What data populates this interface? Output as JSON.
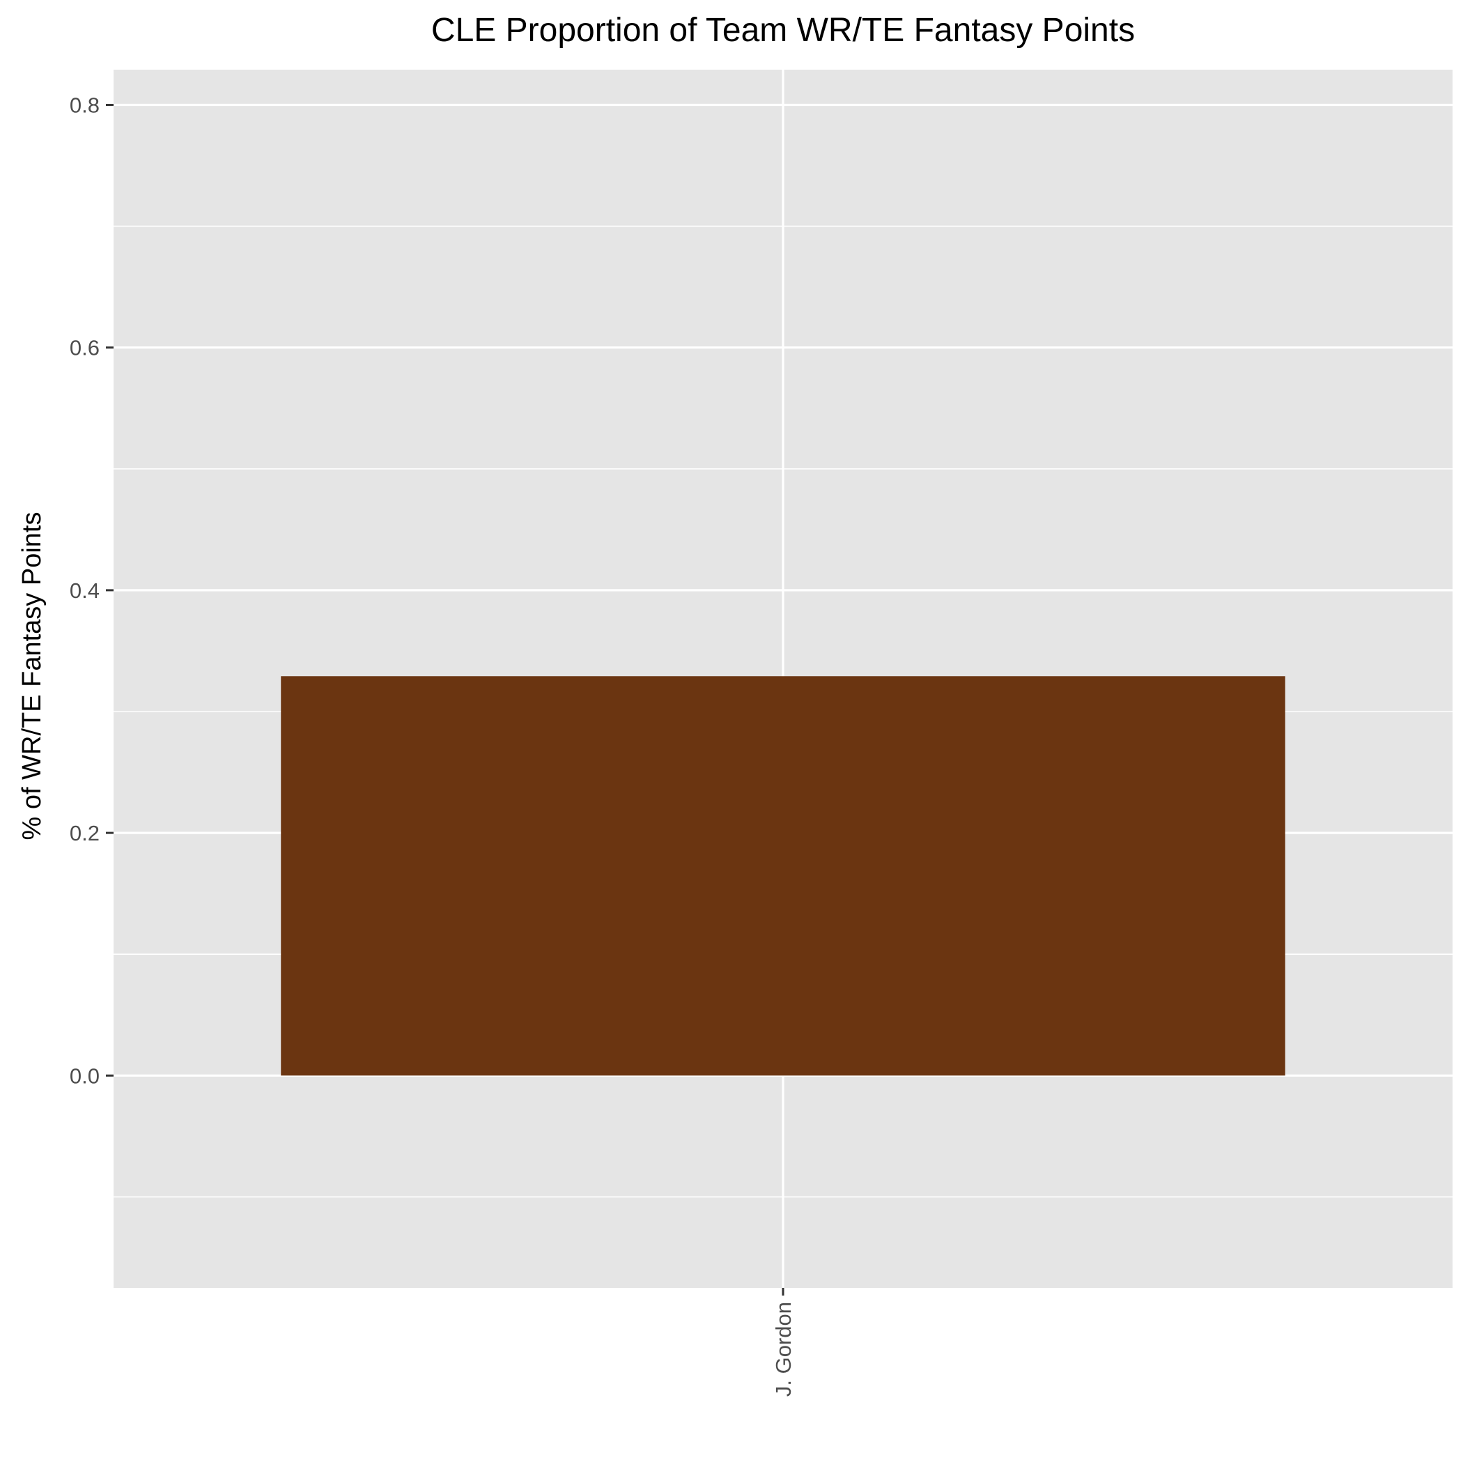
{
  "chart_data": {
    "type": "bar",
    "title": "CLE Proportion of Team WR/TE Fantasy Points",
    "xlabel": "",
    "ylabel": "% of WR/TE Fantasy Points",
    "categories": [
      "J. Gordon"
    ],
    "values": [
      0.328
    ],
    "ylim": [
      -0.175,
      0.829
    ],
    "yticks": [
      0.0,
      0.2,
      0.4,
      0.6,
      0.8
    ],
    "ytick_labels": [
      "0.0",
      "0.2",
      "0.4",
      "0.6",
      "0.8"
    ],
    "minor_yticks": [
      -0.1,
      0.1,
      0.3,
      0.5,
      0.7
    ],
    "grid": true,
    "legend": "none",
    "colors": {
      "panel": "#e5e5e5",
      "grid": "#ffffff",
      "bar_fill": "#6b3511",
      "tick_text": "#4d4d4d",
      "title_text": "#000000"
    }
  }
}
